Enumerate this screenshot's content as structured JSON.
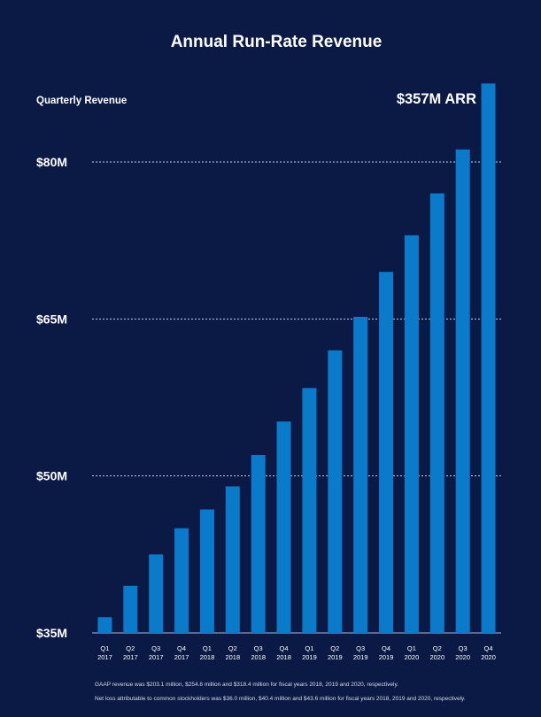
{
  "chart_data": {
    "type": "bar",
    "title": "Annual Run-Rate Revenue",
    "ylabel": "Quarterly Revenue",
    "annotation": "$357M ARR",
    "ylim": [
      35,
      87
    ],
    "yticks": [
      {
        "value": 35,
        "label": "$35M"
      },
      {
        "value": 50,
        "label": "$50M"
      },
      {
        "value": 65,
        "label": "$65M"
      },
      {
        "value": 80,
        "label": "$80M"
      }
    ],
    "categories": [
      {
        "q": "Q1",
        "y": "2017"
      },
      {
        "q": "Q2",
        "y": "2017"
      },
      {
        "q": "Q3",
        "y": "2017"
      },
      {
        "q": "Q4",
        "y": "2017"
      },
      {
        "q": "Q1",
        "y": "2018"
      },
      {
        "q": "Q2",
        "y": "2018"
      },
      {
        "q": "Q3",
        "y": "2018"
      },
      {
        "q": "Q4",
        "y": "2018"
      },
      {
        "q": "Q1",
        "y": "2019"
      },
      {
        "q": "Q2",
        "y": "2019"
      },
      {
        "q": "Q3",
        "y": "2019"
      },
      {
        "q": "Q4",
        "y": "2019"
      },
      {
        "q": "Q1",
        "y": "2020"
      },
      {
        "q": "Q2",
        "y": "2020"
      },
      {
        "q": "Q3",
        "y": "2020"
      },
      {
        "q": "Q4",
        "y": "2020"
      }
    ],
    "values": [
      36.5,
      39.5,
      42.5,
      45.0,
      46.8,
      49.0,
      52.0,
      55.2,
      58.4,
      62.0,
      65.2,
      69.5,
      73.0,
      77.0,
      81.2,
      87.5
    ],
    "colors": {
      "bar": "#0a7acb",
      "background": "#0a1a45",
      "grid": "#c8d0e4",
      "text": "#ffffff"
    }
  },
  "footnotes": [
    "GAAP revenue was $203.1 million, $254.8 million and $318.4 million for fiscal years 2018, 2019 and 2020, respectively.",
    "Net loss attributable to common stockholders was $36.0 million, $40.4 million and $43.6 million for  fiscal years  2018, 2019 and 2020, respectively."
  ]
}
